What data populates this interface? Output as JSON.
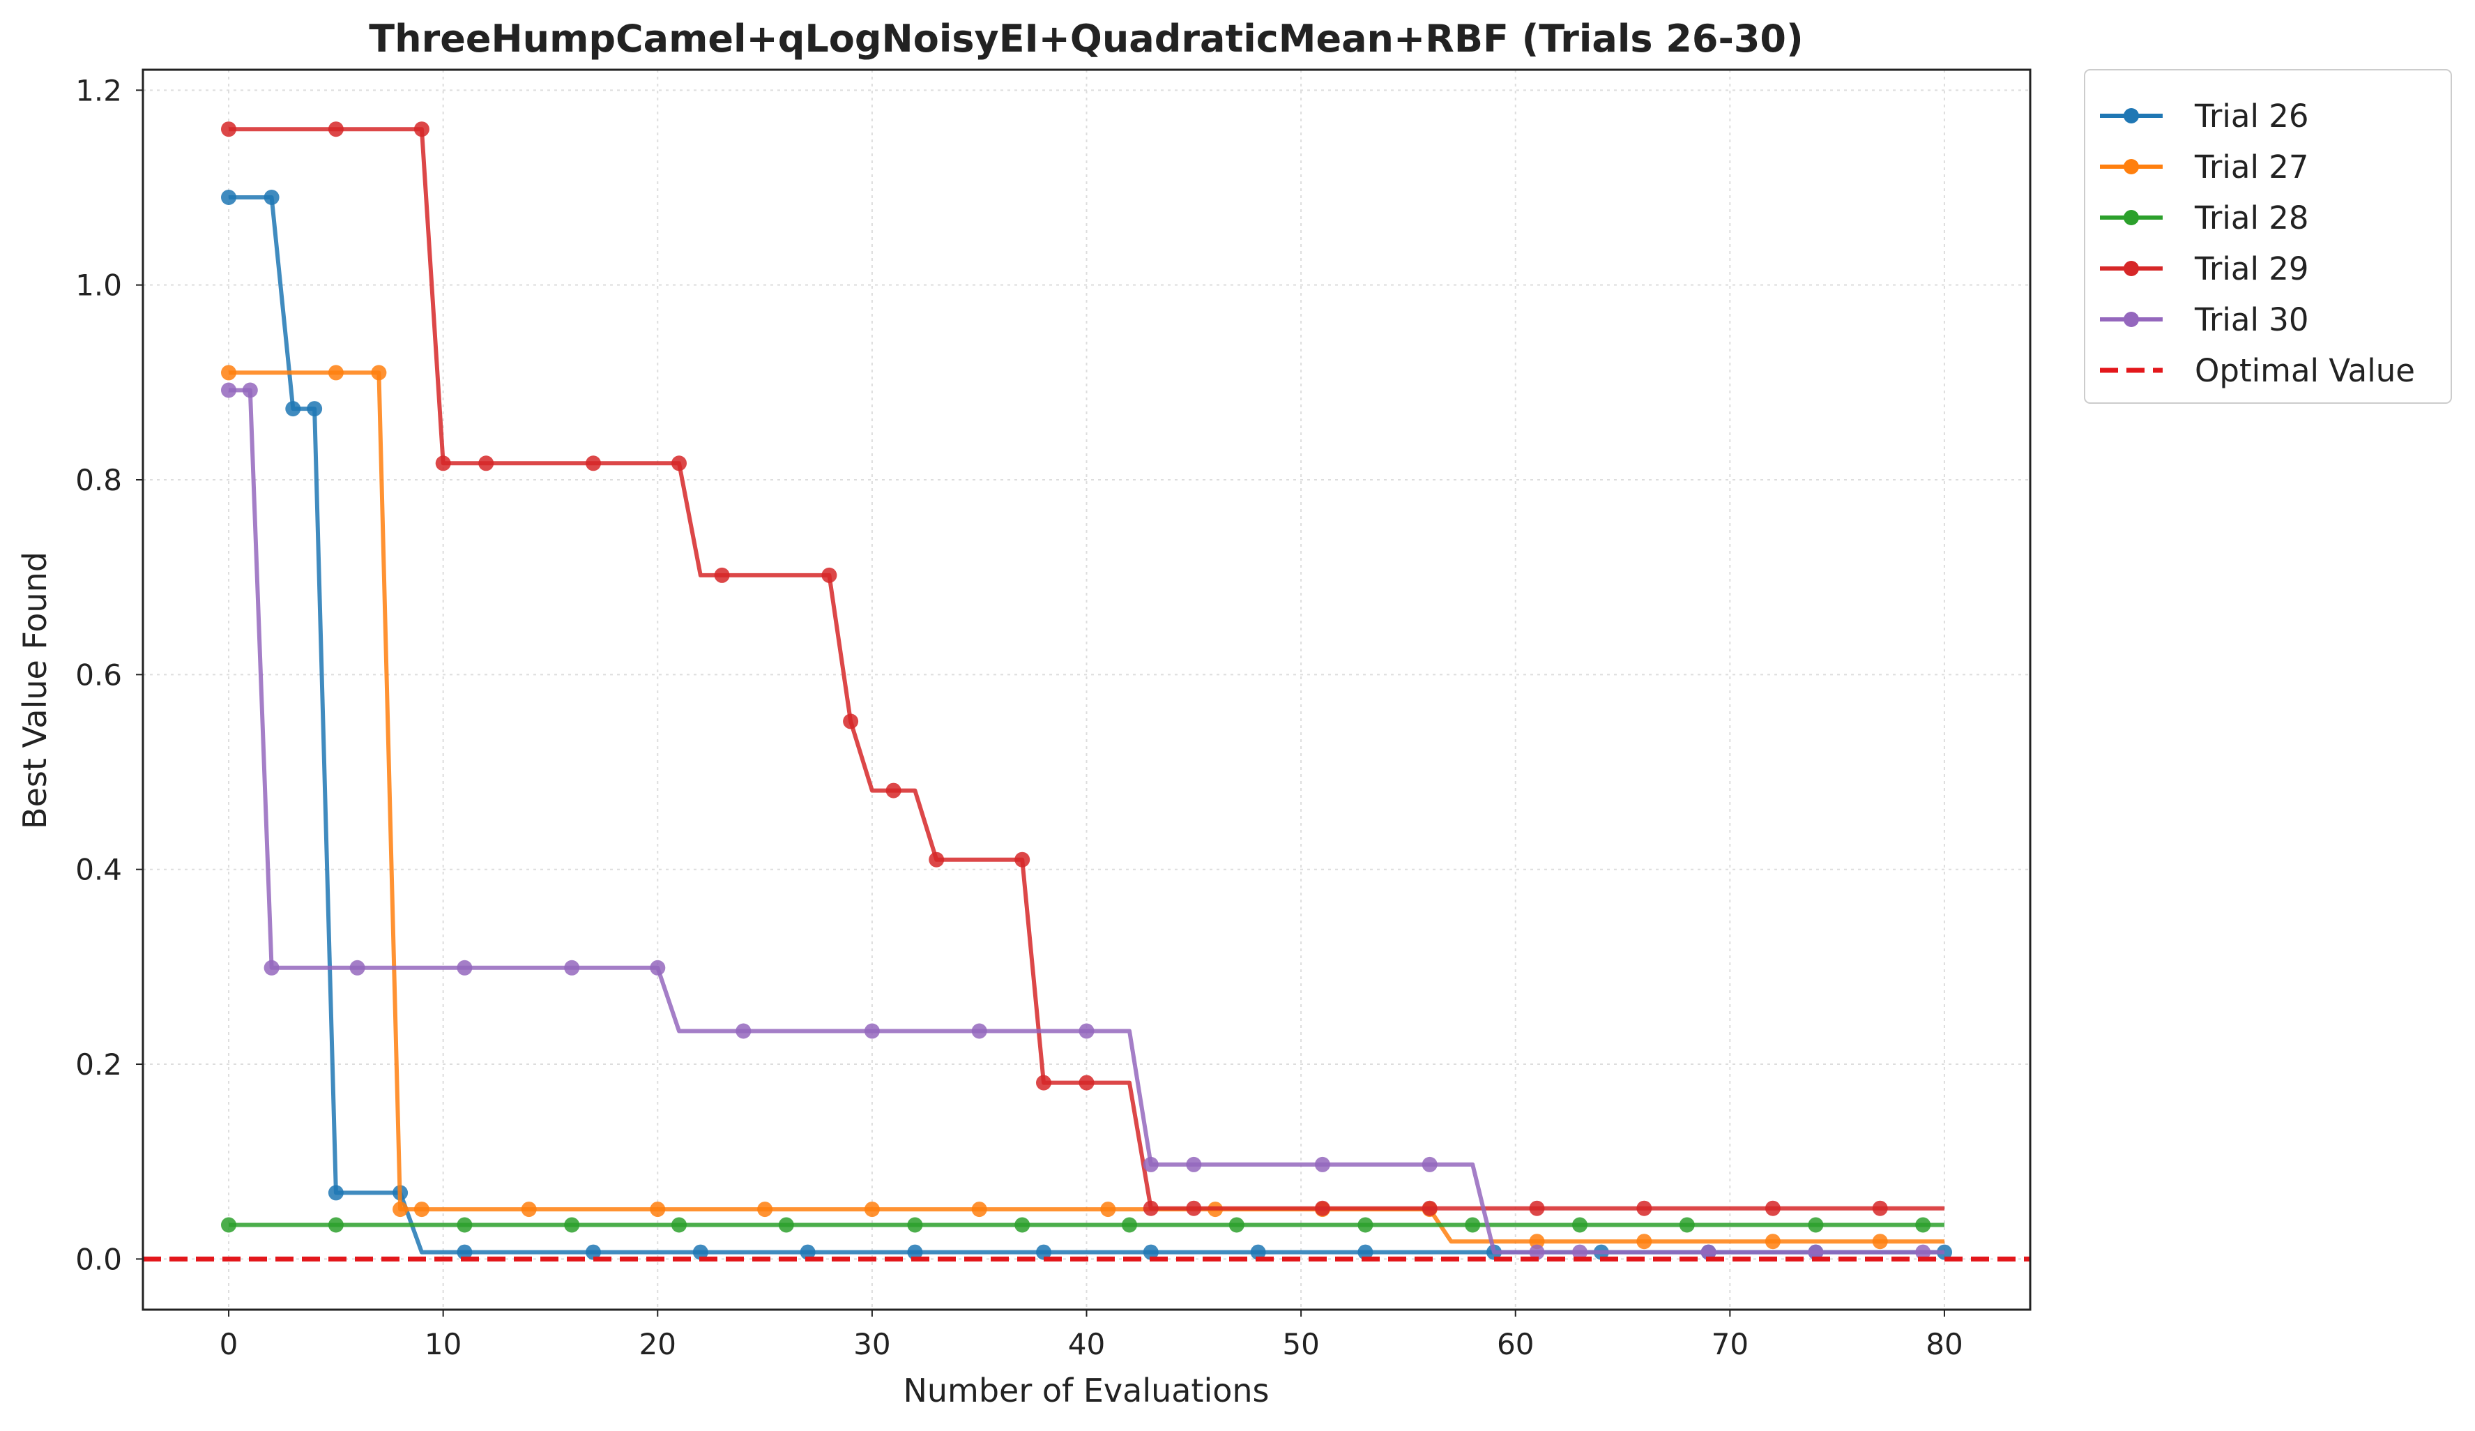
{
  "chart_data": {
    "type": "line",
    "title": "ThreeHumpCamel+qLogNoisyEI+QuadraticMean+RBF (Trials 26-30)",
    "xlabel": "Number of Evaluations",
    "ylabel": "Best Value Found",
    "xlim": [
      -4,
      84
    ],
    "ylim": [
      -0.052,
      1.221
    ],
    "xticks": [
      0,
      10,
      20,
      30,
      40,
      50,
      60,
      70,
      80
    ],
    "yticks": [
      0.0,
      0.2,
      0.4,
      0.6,
      0.8,
      1.0,
      1.2
    ],
    "xtick_labels": [
      "0",
      "10",
      "20",
      "30",
      "40",
      "50",
      "60",
      "70",
      "80"
    ],
    "ytick_labels": [
      "0.0",
      "0.2",
      "0.4",
      "0.6",
      "0.8",
      "1.0",
      "1.2"
    ],
    "grid": true,
    "legend_position": "outside-top-right",
    "optimal_value": {
      "name": "Optimal Value",
      "y": 0.0,
      "color": "#e3171b"
    },
    "series": [
      {
        "name": "Trial 26",
        "color": "#1f77b4",
        "line": [
          [
            0,
            1.09
          ],
          [
            2,
            1.09
          ],
          [
            3,
            0.873
          ],
          [
            4,
            0.873
          ],
          [
            5,
            0.068
          ],
          [
            8,
            0.068
          ],
          [
            9,
            0.007
          ],
          [
            80,
            0.007
          ]
        ],
        "markers": [
          [
            0,
            1.09
          ],
          [
            2,
            1.09
          ],
          [
            3,
            0.873
          ],
          [
            4,
            0.873
          ],
          [
            5,
            0.068
          ],
          [
            8,
            0.068
          ],
          [
            11,
            0.007
          ],
          [
            17,
            0.007
          ],
          [
            22,
            0.007
          ],
          [
            27,
            0.007
          ],
          [
            32,
            0.007
          ],
          [
            38,
            0.007
          ],
          [
            43,
            0.007
          ],
          [
            48,
            0.007
          ],
          [
            53,
            0.007
          ],
          [
            59,
            0.007
          ],
          [
            64,
            0.007
          ],
          [
            69,
            0.007
          ],
          [
            74,
            0.007
          ],
          [
            80,
            0.007
          ]
        ]
      },
      {
        "name": "Trial 27",
        "color": "#ff7f0e",
        "line": [
          [
            0,
            0.91
          ],
          [
            7,
            0.91
          ],
          [
            8,
            0.051
          ],
          [
            56,
            0.051
          ],
          [
            57,
            0.018
          ],
          [
            80,
            0.018
          ]
        ],
        "markers": [
          [
            0,
            0.91
          ],
          [
            5,
            0.91
          ],
          [
            7,
            0.91
          ],
          [
            8,
            0.051
          ],
          [
            9,
            0.051
          ],
          [
            14,
            0.051
          ],
          [
            20,
            0.051
          ],
          [
            25,
            0.051
          ],
          [
            30,
            0.051
          ],
          [
            35,
            0.051
          ],
          [
            41,
            0.051
          ],
          [
            46,
            0.051
          ],
          [
            51,
            0.051
          ],
          [
            56,
            0.051
          ],
          [
            61,
            0.018
          ],
          [
            66,
            0.018
          ],
          [
            72,
            0.018
          ],
          [
            77,
            0.018
          ]
        ]
      },
      {
        "name": "Trial 28",
        "color": "#2ca02c",
        "line": [
          [
            0,
            0.035
          ],
          [
            80,
            0.035
          ]
        ],
        "markers": [
          [
            0,
            0.035
          ],
          [
            5,
            0.035
          ],
          [
            11,
            0.035
          ],
          [
            16,
            0.035
          ],
          [
            21,
            0.035
          ],
          [
            26,
            0.035
          ],
          [
            32,
            0.035
          ],
          [
            37,
            0.035
          ],
          [
            42,
            0.035
          ],
          [
            47,
            0.035
          ],
          [
            53,
            0.035
          ],
          [
            58,
            0.035
          ],
          [
            63,
            0.035
          ],
          [
            68,
            0.035
          ],
          [
            74,
            0.035
          ],
          [
            79,
            0.035
          ]
        ]
      },
      {
        "name": "Trial 29",
        "color": "#d62728",
        "line": [
          [
            0,
            1.16
          ],
          [
            9,
            1.16
          ],
          [
            10,
            0.817
          ],
          [
            21,
            0.817
          ],
          [
            22,
            0.702
          ],
          [
            28,
            0.702
          ],
          [
            29,
            0.552
          ],
          [
            30,
            0.481
          ],
          [
            32,
            0.481
          ],
          [
            33,
            0.41
          ],
          [
            37,
            0.41
          ],
          [
            38,
            0.181
          ],
          [
            42,
            0.181
          ],
          [
            43,
            0.052
          ],
          [
            80,
            0.052
          ]
        ],
        "markers": [
          [
            0,
            1.16
          ],
          [
            5,
            1.16
          ],
          [
            9,
            1.16
          ],
          [
            10,
            0.817
          ],
          [
            12,
            0.817
          ],
          [
            17,
            0.817
          ],
          [
            21,
            0.817
          ],
          [
            23,
            0.702
          ],
          [
            28,
            0.702
          ],
          [
            29,
            0.552
          ],
          [
            31,
            0.481
          ],
          [
            33,
            0.41
          ],
          [
            37,
            0.41
          ],
          [
            38,
            0.181
          ],
          [
            40,
            0.181
          ],
          [
            43,
            0.052
          ],
          [
            45,
            0.052
          ],
          [
            51,
            0.052
          ],
          [
            56,
            0.052
          ],
          [
            61,
            0.052
          ],
          [
            66,
            0.052
          ],
          [
            72,
            0.052
          ],
          [
            77,
            0.052
          ]
        ]
      },
      {
        "name": "Trial 30",
        "color": "#9467bd",
        "line": [
          [
            0,
            0.892
          ],
          [
            1,
            0.892
          ],
          [
            2,
            0.299
          ],
          [
            20,
            0.299
          ],
          [
            21,
            0.234
          ],
          [
            42,
            0.234
          ],
          [
            43,
            0.097
          ],
          [
            58,
            0.097
          ],
          [
            59,
            0.007
          ],
          [
            80,
            0.007
          ]
        ],
        "markers": [
          [
            0,
            0.892
          ],
          [
            1,
            0.892
          ],
          [
            2,
            0.299
          ],
          [
            6,
            0.299
          ],
          [
            11,
            0.299
          ],
          [
            16,
            0.299
          ],
          [
            20,
            0.299
          ],
          [
            24,
            0.234
          ],
          [
            30,
            0.234
          ],
          [
            35,
            0.234
          ],
          [
            40,
            0.234
          ],
          [
            43,
            0.097
          ],
          [
            45,
            0.097
          ],
          [
            51,
            0.097
          ],
          [
            56,
            0.097
          ],
          [
            61,
            0.007
          ],
          [
            63,
            0.007
          ],
          [
            69,
            0.007
          ],
          [
            74,
            0.007
          ],
          [
            79,
            0.007
          ]
        ]
      }
    ]
  }
}
